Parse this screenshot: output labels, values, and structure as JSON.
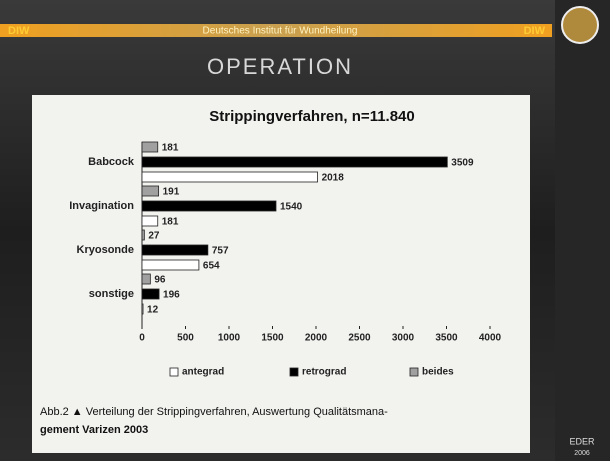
{
  "slide": {
    "header_left": "DIW",
    "header_center": "Deutsches Institut für Wundheilung",
    "header_right": "DIW",
    "title": "OPERATION",
    "caption": [
      "Abb.2 ▲ Verteilung der Strippingverfahren, Auswertung Qualitätsmana-",
      "gement Varizen 2003"
    ],
    "author": "EDER",
    "year": "2006"
  },
  "chart_data": {
    "type": "bar",
    "orientation": "horizontal",
    "title": "Strippingverfahren, n=11.840",
    "categories": [
      "Babcock",
      "Invagination",
      "Kryosonde",
      "sonstige"
    ],
    "series": [
      {
        "name": "beides",
        "color": "#a0a0a0",
        "values": [
          181,
          191,
          27,
          96
        ]
      },
      {
        "name": "retrograd",
        "color": "#000000",
        "values": [
          3509,
          1540,
          757,
          196
        ]
      },
      {
        "name": "antegrad",
        "color": "#ffffff",
        "values": [
          2018,
          181,
          654,
          12
        ]
      }
    ],
    "legend_order": [
      2,
      1,
      0
    ],
    "xlim": [
      0,
      4000
    ],
    "xticks": [
      0,
      500,
      1000,
      1500,
      2000,
      2500,
      3000,
      3500,
      4000
    ],
    "grid": false
  }
}
